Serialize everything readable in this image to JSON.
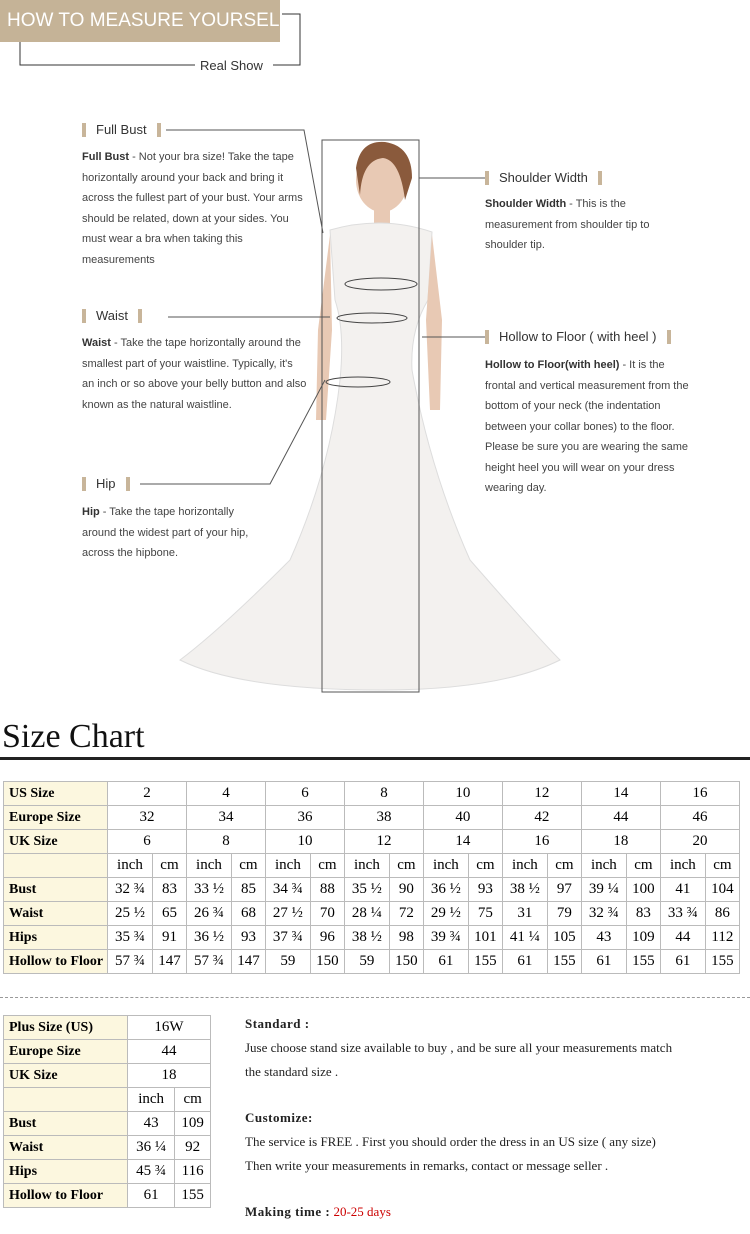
{
  "header": {
    "title": "HOW TO MEASURE YOURSELF",
    "subtitle": "Real Show"
  },
  "measures": [
    {
      "label": "Full Bust",
      "term": "Full Bust",
      "desc": "- Not your bra size! Take the tape horizontally around your back and bring it across the fullest part of your bust. Your arms should be related, down at your sides. You must wear a bra when taking this measurements"
    },
    {
      "label": "Shoulder Width",
      "term": "Shoulder Width",
      "desc": "- This is the measurement from shoulder tip to shoulder tip."
    },
    {
      "label": "Waist",
      "term": "Waist",
      "desc": "- Take the tape horizontally around the smallest part of your waistline. Typically, it's an inch or so above your belly button and also known as the natural waistline."
    },
    {
      "label": "Hollow to Floor ( with heel )",
      "term": "Hollow to Floor(with heel)",
      "desc": "- It is the frontal and vertical measurement from the bottom of your neck (the indentation between your collar bones) to the floor. Please be sure you are wearing the same height heel you will wear on your dress wearing day."
    },
    {
      "label": "Hip",
      "term": "Hip",
      "desc": "- Take the tape horizontally around the widest part of your hip, across the hipbone."
    }
  ],
  "size_chart": {
    "title": "Size Chart",
    "size_rows": [
      {
        "label": "US Size",
        "values": [
          "2",
          "4",
          "6",
          "8",
          "10",
          "12",
          "14",
          "16"
        ]
      },
      {
        "label": "Europe Size",
        "values": [
          "32",
          "34",
          "36",
          "38",
          "40",
          "42",
          "44",
          "46"
        ]
      },
      {
        "label": "UK Size",
        "values": [
          "6",
          "8",
          "10",
          "12",
          "14",
          "16",
          "18",
          "20"
        ]
      }
    ],
    "units": [
      "inch",
      "cm",
      "inch",
      "cm",
      "inch",
      "cm",
      "inch",
      "cm",
      "inch",
      "cm",
      "inch",
      "cm",
      "inch",
      "cm",
      "inch",
      "cm"
    ],
    "measure_rows": [
      {
        "label": "Bust",
        "values": [
          "32 ¾",
          "83",
          "33 ½",
          "85",
          "34 ¾",
          "88",
          "35 ½",
          "90",
          "36 ½",
          "93",
          "38 ½",
          "97",
          "39 ¼",
          "100",
          "41",
          "104"
        ]
      },
      {
        "label": "Waist",
        "values": [
          "25 ½",
          "65",
          "26 ¾",
          "68",
          "27 ½",
          "70",
          "28 ¼",
          "72",
          "29 ½",
          "75",
          "31",
          "79",
          "32 ¾",
          "83",
          "33 ¾",
          "86"
        ]
      },
      {
        "label": "Hips",
        "values": [
          "35 ¾",
          "91",
          "36 ½",
          "93",
          "37 ¾",
          "96",
          "38 ½",
          "98",
          "39 ¾",
          "101",
          "41 ¼",
          "105",
          "43",
          "109",
          "44",
          "112"
        ]
      },
      {
        "label": "Hollow to Floor",
        "values": [
          "57 ¾",
          "147",
          "57 ¾",
          "147",
          "59",
          "150",
          "59",
          "150",
          "61",
          "155",
          "61",
          "155",
          "61",
          "155",
          "61",
          "155"
        ]
      }
    ]
  },
  "plus_chart": {
    "size_rows": [
      {
        "label": "Plus Size (US)",
        "values": [
          "16W"
        ]
      },
      {
        "label": "Europe Size",
        "values": [
          "44"
        ]
      },
      {
        "label": "UK Size",
        "values": [
          "18"
        ]
      }
    ],
    "units": [
      "inch",
      "cm"
    ],
    "measure_rows": [
      {
        "label": "Bust",
        "values": [
          "43",
          "109"
        ]
      },
      {
        "label": "Waist",
        "values": [
          "36 ¼",
          "92"
        ]
      },
      {
        "label": "Hips",
        "values": [
          "45 ¾",
          "116"
        ]
      },
      {
        "label": "Hollow to Floor",
        "values": [
          "61",
          "155"
        ]
      }
    ]
  },
  "notes": {
    "standard": {
      "heading": "Standard :",
      "lines": [
        "Juse choose stand size available to buy , and be sure all your measurements match",
        "the standard size ."
      ]
    },
    "customize": {
      "heading": "Customize:",
      "lines": [
        "The service is FREE . First you should order the dress in an US size ( any size)",
        "Then write your measurements in remarks, contact or message seller ."
      ]
    },
    "making_time": {
      "heading": "Making time :",
      "value": "20-25 days"
    }
  }
}
